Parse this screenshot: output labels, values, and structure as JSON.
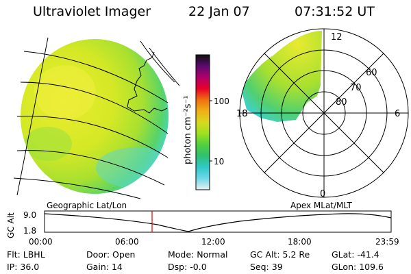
{
  "header": {
    "title": "Ultraviolet Imager",
    "date": "22 Jan 07",
    "time": "07:31:52 UT"
  },
  "colorbar": {
    "label": "photon cm⁻²s⁻¹",
    "ticks": [
      "100",
      "10"
    ],
    "colors": [
      "#101010",
      "#5a0a6e",
      "#b0006a",
      "#e8002a",
      "#f07010",
      "#f0b018",
      "#d8d820",
      "#a0e020",
      "#50d040",
      "#30c070",
      "#30c8c8",
      "#70d8e8",
      "#e8f0f0"
    ]
  },
  "geo_image": {
    "colors": {
      "fill_center": "#e8ea2a",
      "fill_edge": "#40d8d0",
      "grid": "#000000"
    }
  },
  "polar_plot": {
    "lat_labels": [
      "80",
      "70",
      "60"
    ],
    "mlt_labels": [
      "12",
      "18",
      "6",
      "0"
    ]
  },
  "orbit": {
    "left_label": "Geographic Lat/Lon",
    "right_label": "Apex  MLat/MLT",
    "axis_label": "GC Alt",
    "y_ticks": [
      "9.0",
      "1.8"
    ],
    "x_ticks": [
      "00:00",
      "06:00",
      "12:00",
      "18:00",
      "23:59"
    ],
    "marker_color": "#dd0000",
    "marker_time": "07:32"
  },
  "info": {
    "row1": [
      {
        "label": "Flt:",
        "value": "LBHL"
      },
      {
        "label": "Door:",
        "value": "Open"
      },
      {
        "label": "Mode:",
        "value": "Normal"
      },
      {
        "label": "GC Alt:",
        "value": "5.2 Re"
      },
      {
        "label": "GLat:",
        "value": "-41.4"
      }
    ],
    "row2": [
      {
        "label": "IP:",
        "value": "36.0"
      },
      {
        "label": "Gain:",
        "value": "14"
      },
      {
        "label": "Dsp:",
        "value": "-0.0"
      },
      {
        "label": "Seq:",
        "value": "39"
      },
      {
        "label": "GLon:",
        "value": "109.6"
      }
    ]
  }
}
